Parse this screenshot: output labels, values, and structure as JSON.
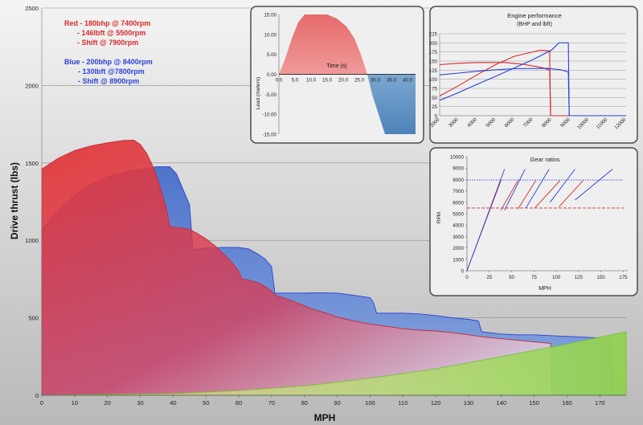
{
  "colors": {
    "red": "#d42a2a",
    "blue": "#2a3fd8",
    "red_fill": "#e23838",
    "blue_fill": "#3f67c8",
    "green_fill": "#8fd14f",
    "inset_bg": "#efefef",
    "inset_border": "#4d4d4d",
    "grid": "#8c8c8c"
  },
  "notes": {
    "red": [
      "Red - 180bhp @ 7400rpm",
      "- 146lbft @ 5500rpm",
      "- Shift @ 7900rpm"
    ],
    "blue": [
      "Blue - 200bhp @ 8400rpm",
      "- 130lbft @7800rpm",
      "- Shift @ 8900rpm"
    ]
  },
  "chart_data": [
    {
      "id": "drive-thrust",
      "type": "area",
      "title": "",
      "xlabel": "MPH",
      "ylabel": "Drive thrust (lbs)",
      "xlim": [
        0,
        178
      ],
      "ylim": [
        0,
        2500
      ],
      "xticks": [
        0,
        10,
        20,
        30,
        40,
        50,
        60,
        70,
        80,
        90,
        100,
        110,
        120,
        130,
        140,
        150,
        160,
        170
      ],
      "yticks": [
        0,
        500,
        1000,
        1500,
        2000,
        2500
      ],
      "grid": "horizontal",
      "series": [
        {
          "color": "blue",
          "points": [
            [
              0,
              1070
            ],
            [
              5,
              1190
            ],
            [
              10,
              1290
            ],
            [
              15,
              1360
            ],
            [
              20,
              1410
            ],
            [
              25,
              1440
            ],
            [
              30,
              1460
            ],
            [
              35,
              1475
            ],
            [
              39,
              1475
            ],
            [
              41,
              1430
            ],
            [
              43,
              1330
            ],
            [
              45,
              1230
            ],
            [
              46,
              940
            ],
            [
              50,
              950
            ],
            [
              55,
              955
            ],
            [
              60,
              955
            ],
            [
              63,
              945
            ],
            [
              66,
              910
            ],
            [
              68,
              880
            ],
            [
              70,
              830
            ],
            [
              71,
              660
            ],
            [
              75,
              660
            ],
            [
              80,
              660
            ],
            [
              85,
              662
            ],
            [
              90,
              660
            ],
            [
              95,
              645
            ],
            [
              100,
              630
            ],
            [
              101,
              600
            ],
            [
              102,
              530
            ],
            [
              105,
              530
            ],
            [
              110,
              530
            ],
            [
              115,
              525
            ],
            [
              120,
              515
            ],
            [
              125,
              500
            ],
            [
              130,
              490
            ],
            [
              133,
              480
            ],
            [
              134,
              410
            ],
            [
              140,
              395
            ],
            [
              145,
              390
            ],
            [
              150,
              390
            ],
            [
              155,
              385
            ],
            [
              160,
              380
            ],
            [
              165,
              375
            ],
            [
              170,
              370
            ],
            [
              173,
              362
            ],
            [
              174,
              0
            ]
          ]
        },
        {
          "color": "red",
          "points": [
            [
              0,
              1460
            ],
            [
              5,
              1530
            ],
            [
              10,
              1580
            ],
            [
              15,
              1610
            ],
            [
              20,
              1630
            ],
            [
              25,
              1645
            ],
            [
              28,
              1648
            ],
            [
              30,
              1620
            ],
            [
              32,
              1560
            ],
            [
              34,
              1470
            ],
            [
              36,
              1350
            ],
            [
              38,
              1200
            ],
            [
              39,
              1090
            ],
            [
              40,
              1085
            ],
            [
              43,
              1080
            ],
            [
              45,
              1070
            ],
            [
              47,
              1050
            ],
            [
              50,
              1010
            ],
            [
              53,
              960
            ],
            [
              56,
              900
            ],
            [
              58,
              855
            ],
            [
              60,
              800
            ],
            [
              61,
              750
            ],
            [
              63,
              745
            ],
            [
              66,
              725
            ],
            [
              69,
              690
            ],
            [
              71,
              650
            ],
            [
              72,
              640
            ],
            [
              75,
              620
            ],
            [
              78,
              595
            ],
            [
              82,
              560
            ],
            [
              86,
              535
            ],
            [
              90,
              505
            ],
            [
              95,
              480
            ],
            [
              100,
              460
            ],
            [
              105,
              445
            ],
            [
              110,
              430
            ],
            [
              115,
              420
            ],
            [
              120,
              415
            ],
            [
              125,
              405
            ],
            [
              130,
              390
            ],
            [
              135,
              375
            ],
            [
              140,
              365
            ],
            [
              145,
              355
            ],
            [
              150,
              345
            ],
            [
              155,
              335
            ],
            [
              155.3,
              0
            ]
          ]
        },
        {
          "color": "green",
          "points": [
            [
              0,
              0
            ],
            [
              40,
              10
            ],
            [
              60,
              30
            ],
            [
              80,
              60
            ],
            [
              100,
              110
            ],
            [
              120,
              170
            ],
            [
              140,
              250
            ],
            [
              160,
              330
            ],
            [
              170,
              375
            ],
            [
              178,
              410
            ],
            [
              178,
              0
            ]
          ]
        }
      ]
    },
    {
      "id": "lead-time",
      "type": "area",
      "title": "",
      "xlabel": "Time (s)",
      "ylabel": "Lead (meters)",
      "xlim": [
        0,
        42.5
      ],
      "ylim": [
        -15,
        15
      ],
      "xticks": [
        "0.0",
        "5.0",
        "10.0",
        "15.0",
        "20.0",
        "25.0",
        "30.0",
        "35.0",
        "40.0"
      ],
      "yticks": [
        "15.00",
        "10.00",
        "5.00",
        "0.00",
        "-5.00",
        "-10.00",
        "-15.00"
      ],
      "series": [
        {
          "color": "red",
          "points": [
            [
              0,
              0
            ],
            [
              2,
              4
            ],
            [
              4,
              9
            ],
            [
              6,
              13
            ],
            [
              8,
              15
            ],
            [
              15,
              15
            ],
            [
              18,
              14
            ],
            [
              21,
              12
            ],
            [
              23.5,
              9
            ],
            [
              25.5,
              5
            ],
            [
              27.5,
              0
            ]
          ]
        },
        {
          "color": "blue",
          "points": [
            [
              27.5,
              0
            ],
            [
              29,
              -5
            ],
            [
              31,
              -10
            ],
            [
              33,
              -15
            ],
            [
              42.5,
              -15
            ],
            [
              42.5,
              0
            ]
          ]
        }
      ]
    },
    {
      "id": "engine-performance",
      "type": "line",
      "title": "Engine performance",
      "subtitle": "(BHP and lbft)",
      "xlim": [
        2000,
        12000
      ],
      "ylim": [
        0,
        225
      ],
      "xticks": [
        "2000",
        "3000",
        "4000",
        "5000",
        "6000",
        "7000",
        "8000",
        "9000",
        "10000",
        "11000",
        "12000"
      ],
      "yticks": [
        "0",
        "25",
        "50",
        "75",
        "100",
        "125",
        "150",
        "175",
        "200",
        "225"
      ],
      "grid": "horizontal",
      "series": [
        {
          "color": "red",
          "points": [
            [
              2000,
              140
            ],
            [
              3000,
              144
            ],
            [
              4000,
              146
            ],
            [
              5500,
              146
            ],
            [
              6500,
              141
            ],
            [
              7500,
              132
            ],
            [
              7900,
              125
            ],
            [
              7950,
              0
            ],
            [
              12000,
              0
            ]
          ]
        },
        {
          "color": "red",
          "points": [
            [
              2000,
              54
            ],
            [
              3000,
              82
            ],
            [
              4000,
              112
            ],
            [
              5000,
              140
            ],
            [
              6000,
              163
            ],
            [
              7400,
              180
            ],
            [
              7900,
              178
            ],
            [
              7950,
              0
            ]
          ]
        },
        {
          "color": "blue",
          "points": [
            [
              2000,
              112
            ],
            [
              3000,
              117
            ],
            [
              4000,
              122
            ],
            [
              5000,
              126
            ],
            [
              6000,
              129
            ],
            [
              7800,
              130
            ],
            [
              8500,
              126
            ],
            [
              8900,
              120
            ],
            [
              8950,
              0
            ],
            [
              12000,
              0
            ]
          ]
        },
        {
          "color": "blue",
          "points": [
            [
              2000,
              42
            ],
            [
              3000,
              63
            ],
            [
              4000,
              86
            ],
            [
              5000,
              108
            ],
            [
              6000,
              131
            ],
            [
              7000,
              154
            ],
            [
              8000,
              180
            ],
            [
              8400,
              200
            ],
            [
              8900,
              200
            ],
            [
              8950,
              0
            ]
          ]
        }
      ]
    },
    {
      "id": "gear-ratios",
      "type": "line",
      "title": "Gear ratios",
      "xlabel": "MPH",
      "ylabel": "RPM",
      "xlim": [
        0,
        180
      ],
      "ylim": [
        0,
        10000
      ],
      "xticks": [
        "0",
        "25",
        "50",
        "75",
        "100",
        "125",
        "150",
        "175"
      ],
      "yticks": [
        "0",
        "1000",
        "2000",
        "3000",
        "4000",
        "5000",
        "6000",
        "7000",
        "8000",
        "9000",
        "10000"
      ],
      "reference_lines": [
        {
          "color": "red",
          "y": 5500,
          "style": "dashed"
        },
        {
          "color": "blue",
          "y": 7950,
          "style": "dotted"
        }
      ],
      "series": [
        {
          "color": "red",
          "points": [
            [
              0,
              0
            ],
            [
              38,
              7900
            ]
          ]
        },
        {
          "color": "red",
          "points": [
            [
              38,
              5300
            ],
            [
              57,
              7900
            ]
          ]
        },
        {
          "color": "red",
          "points": [
            [
              57,
              5400
            ],
            [
              77,
              7900
            ]
          ]
        },
        {
          "color": "red",
          "points": [
            [
              76,
              5500
            ],
            [
              104,
              7900
            ]
          ]
        },
        {
          "color": "red",
          "points": [
            [
              103,
              5600
            ],
            [
              130,
              7900
            ]
          ]
        },
        {
          "color": "blue",
          "points": [
            [
              0,
              0
            ],
            [
              42,
              8900
            ]
          ]
        },
        {
          "color": "blue",
          "points": [
            [
              42,
              5300
            ],
            [
              65,
              8900
            ]
          ]
        },
        {
          "color": "blue",
          "points": [
            [
              66,
              5500
            ],
            [
              92,
              8900
            ]
          ]
        },
        {
          "color": "blue",
          "points": [
            [
              93,
              6000
            ],
            [
              121,
              8900
            ]
          ]
        },
        {
          "color": "blue",
          "points": [
            [
              121,
              6200
            ],
            [
              163,
              8900
            ]
          ]
        }
      ]
    }
  ]
}
